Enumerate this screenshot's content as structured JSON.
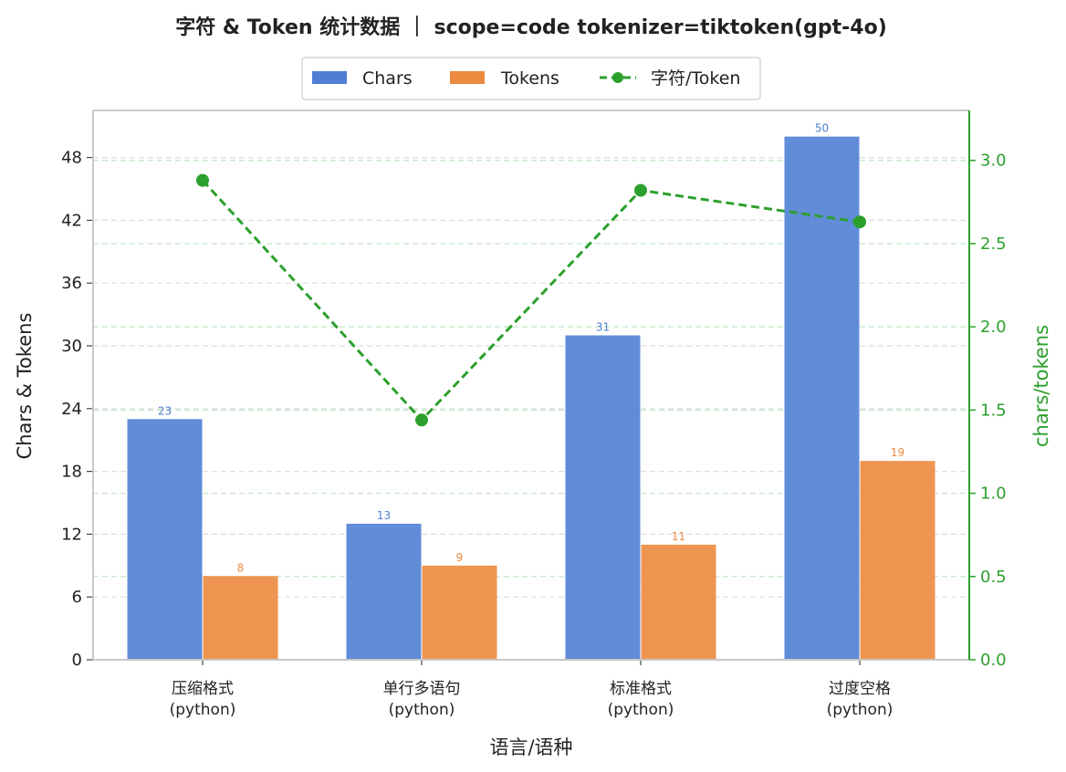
{
  "chart_data": {
    "type": "bar",
    "title": "字符 & Token 统计数据 ｜ scope=code  tokenizer=tiktoken(gpt-4o)",
    "xlabel": "语言/语种",
    "ylabel": "Chars & Tokens",
    "y2label": "chars/tokens",
    "categories": [
      {
        "line1": "压缩格式",
        "line2": "(python)"
      },
      {
        "line1": "单行多语句",
        "line2": "(python)"
      },
      {
        "line1": "标准格式",
        "line2": "(python)"
      },
      {
        "line1": "过度空格",
        "line2": "(python)"
      }
    ],
    "ylim": [
      0,
      52.5
    ],
    "y_ticks": [
      0,
      6,
      12,
      18,
      24,
      30,
      36,
      42,
      48
    ],
    "y2lim": [
      0,
      3.3
    ],
    "y2_ticks": [
      "0.0",
      "0.5",
      "1.0",
      "1.5",
      "2.0",
      "2.5",
      "3.0"
    ],
    "grid": true,
    "legend_position": "top-center",
    "series": [
      {
        "name": "Chars",
        "kind": "bar",
        "axis": "left",
        "color": "#4f7fd4",
        "values": [
          23,
          13,
          31,
          50
        ]
      },
      {
        "name": "Tokens",
        "kind": "bar",
        "axis": "left",
        "color": "#ec8a3f",
        "values": [
          8,
          9,
          11,
          19
        ]
      },
      {
        "name": "字符/Token",
        "kind": "line",
        "axis": "right",
        "color": "#2ca02c",
        "style": "dashed",
        "values": [
          2.88,
          1.44,
          2.82,
          2.63
        ]
      }
    ]
  }
}
